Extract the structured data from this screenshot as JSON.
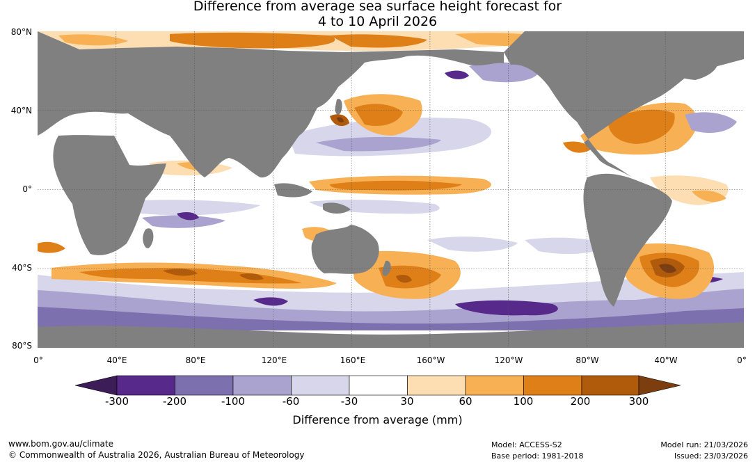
{
  "title": {
    "line1": "Difference from average sea surface height forecast for",
    "line2": "4 to 10 April 2026"
  },
  "map": {
    "projection": "equirectangular",
    "land_color": "#808080",
    "ocean_neutral_color": "#ffffff",
    "lat_labels": [
      "80°N",
      "40°N",
      "0°",
      "40°S",
      "80°S"
    ],
    "lon_labels": [
      "0°",
      "40°E",
      "80°E",
      "120°E",
      "160°E",
      "160°W",
      "120°W",
      "80°W",
      "40°W",
      "0°"
    ]
  },
  "colorbar": {
    "label": "Difference from average (mm)",
    "ticks": [
      "-300",
      "-200",
      "-100",
      "-60",
      "-30",
      "30",
      "60",
      "100",
      "200",
      "300"
    ],
    "colors": [
      "#3d1d58",
      "#57298a",
      "#7d70ae",
      "#aaa3cf",
      "#d8d6ea",
      "#ffffff",
      "#fddeb3",
      "#f8b055",
      "#df7f17",
      "#b05b0c",
      "#7d3e0f"
    ]
  },
  "footer": {
    "url": "www.bom.gov.au/climate",
    "copyright": "© Commonwealth of Australia 2026, Australian Bureau of Meteorology",
    "model": "Model: ACCESS-S2",
    "base_period": "Base period: 1981-2018",
    "model_run": "Model run: 21/03/2026",
    "issued": "Issued: 23/03/2026"
  }
}
